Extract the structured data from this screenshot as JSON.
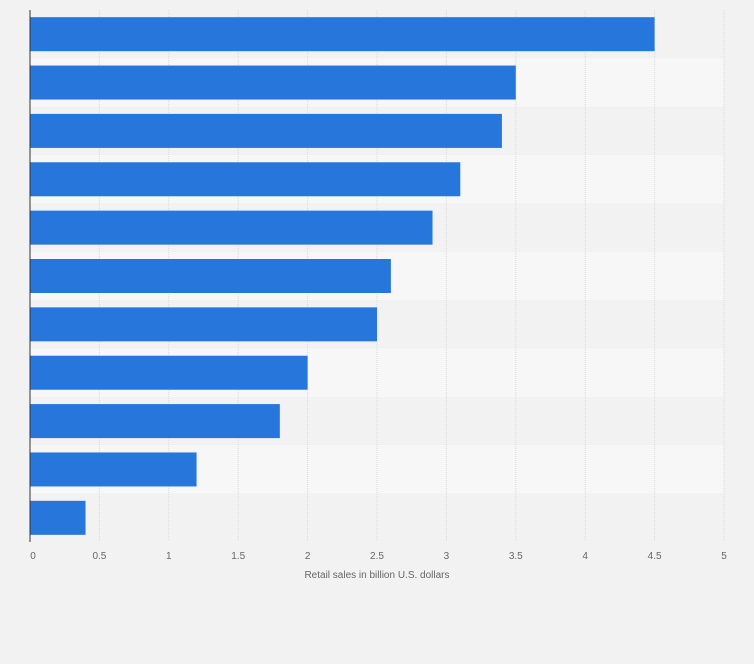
{
  "chart_data": {
    "type": "bar",
    "orientation": "horizontal",
    "categories": [
      "",
      "",
      "",
      "",
      "",
      "",
      "",
      "",
      "",
      "",
      ""
    ],
    "values": [
      4.5,
      3.5,
      3.4,
      3.1,
      2.9,
      2.6,
      2.5,
      2.0,
      1.8,
      1.2,
      0.4
    ],
    "title": "",
    "xlabel": "Retail sales in billion U.S. dollars",
    "ylabel": "",
    "xlim": [
      0,
      5
    ],
    "x_ticks": [
      "0",
      "0.5",
      "1",
      "1.5",
      "2",
      "2.5",
      "3",
      "3.5",
      "4",
      "4.5",
      "5"
    ],
    "grid": true,
    "legend": "none",
    "colors": {
      "bar": "#2776dc",
      "background": "#f2f2f2",
      "band_alt": "#f7f7f7",
      "grid": "#dadada",
      "axis": "#333333",
      "tick_text": "#666666"
    }
  }
}
